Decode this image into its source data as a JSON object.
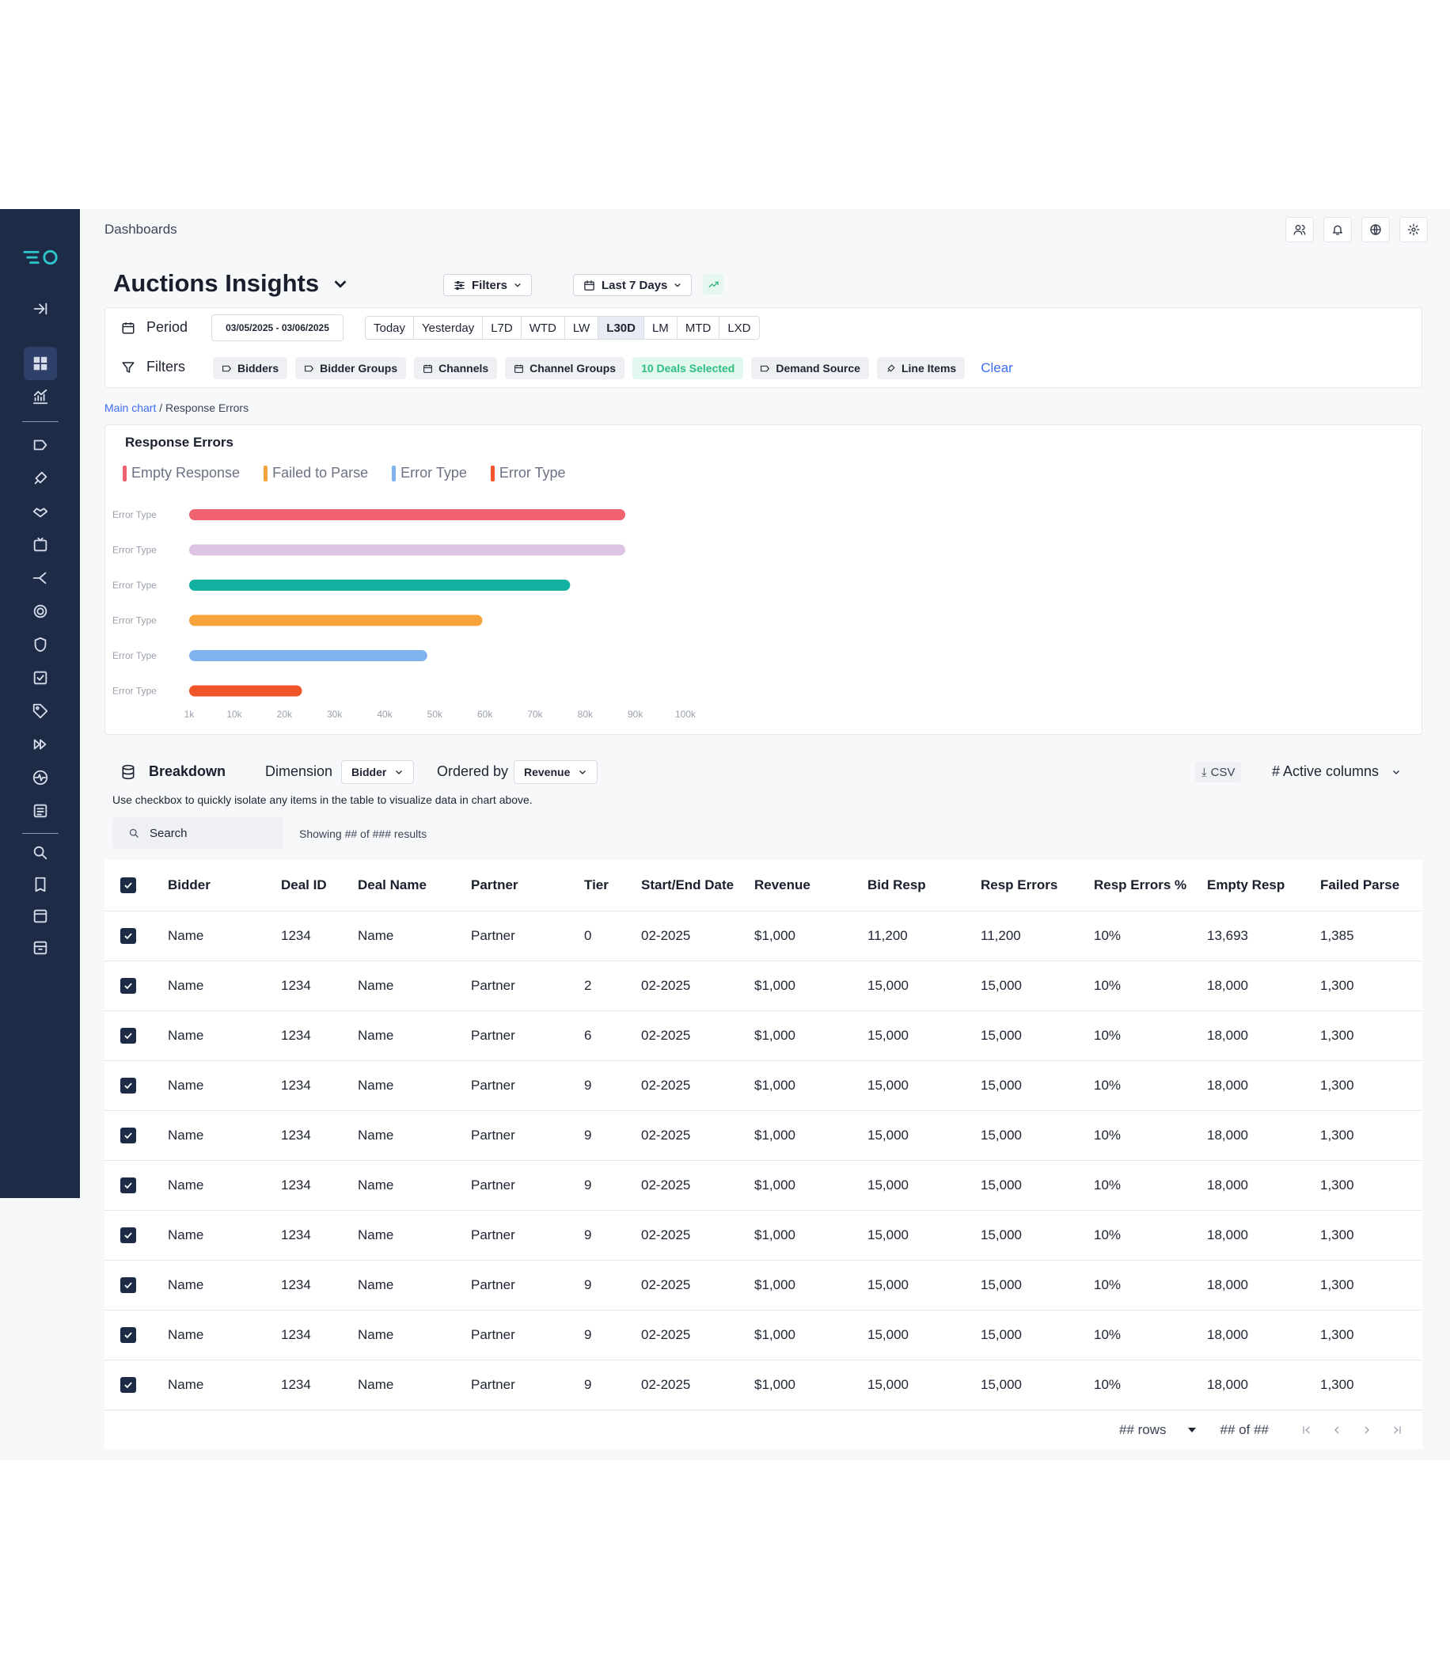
{
  "topbar": {
    "title": "Dashboards"
  },
  "page": {
    "title": "Auctions Insights"
  },
  "header": {
    "filters_label": "Filters",
    "range_label": "Last 7 Days"
  },
  "period": {
    "label": "Period",
    "date_range": "03/05/2025 - 03/06/2025",
    "presets": [
      "Today",
      "Yesterday",
      "L7D",
      "WTD",
      "LW",
      "L30D",
      "LM",
      "MTD",
      "LXD"
    ],
    "selected": "L30D"
  },
  "filters": {
    "label": "Filters",
    "chips": [
      "Bidders",
      "Bidder Groups",
      "Channels",
      "Channel Groups",
      "10 Deals Selected",
      "Demand Source",
      "Line Items"
    ],
    "clear_label": "Clear"
  },
  "breadcrumb": {
    "link": "Main chart",
    "current": "Response Errors"
  },
  "chart_data": {
    "type": "bar",
    "orientation": "horizontal",
    "title": "Response Errors",
    "legend": [
      {
        "name": "Empty Response",
        "color": "#f0626f"
      },
      {
        "name": "Failed to Parse",
        "color": "#f7a33b"
      },
      {
        "name": "Error Type",
        "color": "#7fb2ef"
      },
      {
        "name": "Error Type",
        "color": "#f0552a"
      }
    ],
    "categories": [
      "Error Type",
      "Error Type",
      "Error Type",
      "Error Type",
      "Error Type",
      "Error Type"
    ],
    "values": [
      88000,
      88000,
      77000,
      59500,
      48500,
      23500
    ],
    "colors": [
      "#f0626f",
      "#dcc3e4",
      "#12b0a0",
      "#f7a33b",
      "#7fb2ef",
      "#f0552a"
    ],
    "x_ticks": [
      "1k",
      "10k",
      "20k",
      "30k",
      "40k",
      "50k",
      "60k",
      "70k",
      "80k",
      "90k",
      "100k"
    ],
    "tick_values": [
      1000,
      10000,
      20000,
      30000,
      40000,
      50000,
      60000,
      70000,
      80000,
      90000,
      100000
    ],
    "xlim": [
      1000,
      100000
    ],
    "grid": false
  },
  "breakdown": {
    "title": "Breakdown",
    "dimension_label": "Dimension",
    "dimension_value": "Bidder",
    "ordered_label": "Ordered by",
    "ordered_value": "Revenue",
    "csv_label": "CSV",
    "columns_label": "# Active columns",
    "hint": "Use checkbox to quickly isolate any items in the table to visualize data in chart above.",
    "search_placeholder": "Search",
    "showing": "Showing ## of ### results"
  },
  "table": {
    "columns": [
      "Bidder",
      "Deal ID",
      "Deal Name",
      "Partner",
      "Tier",
      "Start/End Date",
      "Revenue",
      "Bid Resp",
      "Resp Errors",
      "Resp Errors %",
      "Empty Resp",
      "Failed Parse"
    ],
    "rows": [
      [
        "Name",
        "1234",
        "Name",
        "Partner",
        "0",
        "02-2025",
        "$1,000",
        "11,200",
        "11,200",
        "10%",
        "13,693",
        "1,385"
      ],
      [
        "Name",
        "1234",
        "Name",
        "Partner",
        "2",
        "02-2025",
        "$1,000",
        "15,000",
        "15,000",
        "10%",
        "18,000",
        "1,300"
      ],
      [
        "Name",
        "1234",
        "Name",
        "Partner",
        "6",
        "02-2025",
        "$1,000",
        "15,000",
        "15,000",
        "10%",
        "18,000",
        "1,300"
      ],
      [
        "Name",
        "1234",
        "Name",
        "Partner",
        "9",
        "02-2025",
        "$1,000",
        "15,000",
        "15,000",
        "10%",
        "18,000",
        "1,300"
      ],
      [
        "Name",
        "1234",
        "Name",
        "Partner",
        "9",
        "02-2025",
        "$1,000",
        "15,000",
        "15,000",
        "10%",
        "18,000",
        "1,300"
      ],
      [
        "Name",
        "1234",
        "Name",
        "Partner",
        "9",
        "02-2025",
        "$1,000",
        "15,000",
        "15,000",
        "10%",
        "18,000",
        "1,300"
      ],
      [
        "Name",
        "1234",
        "Name",
        "Partner",
        "9",
        "02-2025",
        "$1,000",
        "15,000",
        "15,000",
        "10%",
        "18,000",
        "1,300"
      ],
      [
        "Name",
        "1234",
        "Name",
        "Partner",
        "9",
        "02-2025",
        "$1,000",
        "15,000",
        "15,000",
        "10%",
        "18,000",
        "1,300"
      ],
      [
        "Name",
        "1234",
        "Name",
        "Partner",
        "9",
        "02-2025",
        "$1,000",
        "15,000",
        "15,000",
        "10%",
        "18,000",
        "1,300"
      ],
      [
        "Name",
        "1234",
        "Name",
        "Partner",
        "9",
        "02-2025",
        "$1,000",
        "15,000",
        "15,000",
        "10%",
        "18,000",
        "1,300"
      ]
    ]
  },
  "pagination": {
    "rows_label": "## rows",
    "page_label": "## of ##"
  },
  "colors": {
    "sidebar": "#1d2b46",
    "accent": "#3e6df2",
    "success": "#2dbf7f"
  }
}
